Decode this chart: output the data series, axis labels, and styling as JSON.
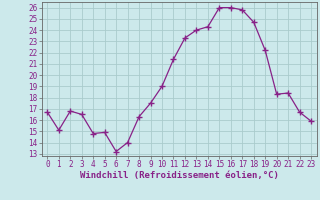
{
  "x": [
    0,
    1,
    2,
    3,
    4,
    5,
    6,
    7,
    8,
    9,
    10,
    11,
    12,
    13,
    14,
    15,
    16,
    17,
    18,
    19,
    20,
    21,
    22,
    23
  ],
  "y": [
    16.7,
    15.1,
    16.8,
    16.5,
    14.8,
    14.9,
    13.2,
    14.0,
    16.3,
    17.5,
    19.0,
    21.4,
    23.3,
    24.0,
    24.3,
    26.0,
    26.0,
    25.8,
    24.7,
    22.2,
    18.3,
    18.4,
    16.7,
    15.9
  ],
  "line_color": "#882288",
  "marker": "+",
  "markersize": 4,
  "linewidth": 0.9,
  "markeredgewidth": 1.0,
  "xlabel": "Windchill (Refroidissement éolien,°C)",
  "xlabel_fontsize": 6.5,
  "ylabel_ticks": [
    13,
    14,
    15,
    16,
    17,
    18,
    19,
    20,
    21,
    22,
    23,
    24,
    25,
    26
  ],
  "xlim": [
    -0.5,
    23.5
  ],
  "ylim": [
    12.8,
    26.5
  ],
  "background_color": "#cce9eb",
  "grid_color": "#aacccc",
  "tick_fontsize": 5.5,
  "spine_color": "#666666"
}
